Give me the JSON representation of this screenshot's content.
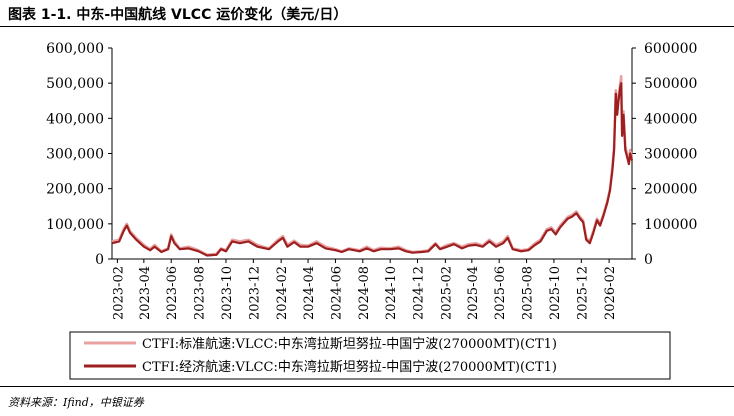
{
  "title": "图表 1-1. 中东-中国航线 VLCC 运价变化（美元/日）",
  "source": "资料来源：Ifind，中银证券",
  "chart_data": {
    "type": "line",
    "y_left": {
      "ticks": [
        "0",
        "100,000",
        "200,000",
        "300,000",
        "400,000",
        "500,000",
        "600,000"
      ],
      "range": [
        0,
        600000
      ]
    },
    "y_right": {
      "ticks": [
        "0",
        "100000",
        "200000",
        "300000",
        "400000",
        "500000",
        "600000"
      ],
      "range": [
        0,
        600000
      ]
    },
    "x_range": [
      "2023-01-20",
      "2026-03-24"
    ],
    "x_ticks": [
      "2023-02",
      "2023-04",
      "2023-06",
      "2023-08",
      "2023-10",
      "2023-12",
      "2024-02",
      "2024-04",
      "2024-06",
      "2024-08",
      "2024-10",
      "2024-12",
      "2025-02",
      "2025-04",
      "2025-06",
      "2025-08",
      "2025-10",
      "2025-12",
      "2026-02"
    ],
    "legend_position": "bottom",
    "grid": false,
    "series": [
      {
        "name": "CTFI:标准航速:VLCC:中东湾拉斯坦努拉-中国宁波(270000MT)(CT1)",
        "color": "#e8a0a0",
        "points": [
          [
            "2023-01-20",
            50000
          ],
          [
            "2023-02-05",
            55000
          ],
          [
            "2023-02-15",
            85000
          ],
          [
            "2023-02-22",
            100000
          ],
          [
            "2023-03-01",
            80000
          ],
          [
            "2023-03-15",
            60000
          ],
          [
            "2023-04-01",
            40000
          ],
          [
            "2023-04-15",
            28000
          ],
          [
            "2023-04-25",
            40000
          ],
          [
            "2023-05-10",
            22000
          ],
          [
            "2023-05-25",
            30000
          ],
          [
            "2023-06-01",
            70000
          ],
          [
            "2023-06-08",
            50000
          ],
          [
            "2023-06-20",
            30000
          ],
          [
            "2023-07-10",
            35000
          ],
          [
            "2023-08-01",
            25000
          ],
          [
            "2023-08-20",
            12000
          ],
          [
            "2023-09-10",
            15000
          ],
          [
            "2023-09-20",
            30000
          ],
          [
            "2023-10-01",
            25000
          ],
          [
            "2023-10-15",
            55000
          ],
          [
            "2023-11-01",
            50000
          ],
          [
            "2023-11-20",
            55000
          ],
          [
            "2023-12-10",
            40000
          ],
          [
            "2024-01-05",
            30000
          ],
          [
            "2024-01-25",
            55000
          ],
          [
            "2024-02-05",
            65000
          ],
          [
            "2024-02-15",
            40000
          ],
          [
            "2024-03-01",
            52000
          ],
          [
            "2024-03-15",
            40000
          ],
          [
            "2024-04-01",
            38000
          ],
          [
            "2024-04-20",
            50000
          ],
          [
            "2024-05-10",
            35000
          ],
          [
            "2024-06-01",
            28000
          ],
          [
            "2024-06-15",
            22000
          ],
          [
            "2024-07-01",
            30000
          ],
          [
            "2024-07-25",
            25000
          ],
          [
            "2024-08-10",
            35000
          ],
          [
            "2024-08-25",
            25000
          ],
          [
            "2024-09-10",
            32000
          ],
          [
            "2024-10-01",
            30000
          ],
          [
            "2024-10-20",
            35000
          ],
          [
            "2024-11-05",
            25000
          ],
          [
            "2024-11-20",
            20000
          ],
          [
            "2024-12-10",
            22000
          ],
          [
            "2024-12-25",
            25000
          ],
          [
            "2025-01-10",
            45000
          ],
          [
            "2025-01-20",
            30000
          ],
          [
            "2025-02-05",
            40000
          ],
          [
            "2025-02-20",
            45000
          ],
          [
            "2025-03-10",
            35000
          ],
          [
            "2025-03-25",
            42000
          ],
          [
            "2025-04-10",
            45000
          ],
          [
            "2025-04-25",
            38000
          ],
          [
            "2025-05-10",
            55000
          ],
          [
            "2025-05-25",
            40000
          ],
          [
            "2025-06-10",
            50000
          ],
          [
            "2025-06-20",
            65000
          ],
          [
            "2025-07-01",
            30000
          ],
          [
            "2025-07-20",
            25000
          ],
          [
            "2025-08-05",
            28000
          ],
          [
            "2025-08-20",
            45000
          ],
          [
            "2025-09-01",
            55000
          ],
          [
            "2025-09-15",
            85000
          ],
          [
            "2025-09-25",
            90000
          ],
          [
            "2025-10-05",
            75000
          ],
          [
            "2025-10-15",
            95000
          ],
          [
            "2025-10-25",
            110000
          ],
          [
            "2025-11-01",
            120000
          ],
          [
            "2025-11-10",
            125000
          ],
          [
            "2025-11-20",
            135000
          ],
          [
            "2025-11-28",
            120000
          ],
          [
            "2025-12-05",
            110000
          ],
          [
            "2025-12-12",
            60000
          ],
          [
            "2025-12-20",
            50000
          ],
          [
            "2025-12-28",
            80000
          ],
          [
            "2026-01-05",
            115000
          ],
          [
            "2026-01-12",
            100000
          ],
          [
            "2026-01-20",
            130000
          ],
          [
            "2026-01-28",
            165000
          ],
          [
            "2026-02-03",
            200000
          ],
          [
            "2026-02-08",
            260000
          ],
          [
            "2026-02-12",
            320000
          ],
          [
            "2026-02-16",
            480000
          ],
          [
            "2026-02-19",
            420000
          ],
          [
            "2026-02-22",
            460000
          ],
          [
            "2026-02-26",
            500000
          ],
          [
            "2026-02-28",
            520000
          ],
          [
            "2026-03-02",
            360000
          ],
          [
            "2026-03-05",
            420000
          ],
          [
            "2026-03-09",
            320000
          ],
          [
            "2026-03-13",
            300000
          ],
          [
            "2026-03-17",
            280000
          ],
          [
            "2026-03-20",
            310000
          ],
          [
            "2026-03-24",
            290000
          ]
        ]
      },
      {
        "name": "CTFI:经济航速:VLCC:中东湾拉斯坦努拉-中国宁波(270000MT)(CT1)",
        "color": "#9e1f1f",
        "points": [
          [
            "2023-01-20",
            45000
          ],
          [
            "2023-02-05",
            50000
          ],
          [
            "2023-02-15",
            80000
          ],
          [
            "2023-02-22",
            95000
          ],
          [
            "2023-03-01",
            75000
          ],
          [
            "2023-03-15",
            55000
          ],
          [
            "2023-04-01",
            35000
          ],
          [
            "2023-04-15",
            25000
          ],
          [
            "2023-04-25",
            35000
          ],
          [
            "2023-05-10",
            20000
          ],
          [
            "2023-05-25",
            28000
          ],
          [
            "2023-06-01",
            65000
          ],
          [
            "2023-06-08",
            45000
          ],
          [
            "2023-06-20",
            28000
          ],
          [
            "2023-07-10",
            30000
          ],
          [
            "2023-08-01",
            22000
          ],
          [
            "2023-08-20",
            10000
          ],
          [
            "2023-09-10",
            12000
          ],
          [
            "2023-09-20",
            28000
          ],
          [
            "2023-10-01",
            22000
          ],
          [
            "2023-10-15",
            50000
          ],
          [
            "2023-11-01",
            45000
          ],
          [
            "2023-11-20",
            50000
          ],
          [
            "2023-12-10",
            35000
          ],
          [
            "2024-01-05",
            28000
          ],
          [
            "2024-01-25",
            50000
          ],
          [
            "2024-02-05",
            60000
          ],
          [
            "2024-02-15",
            35000
          ],
          [
            "2024-03-01",
            48000
          ],
          [
            "2024-03-15",
            35000
          ],
          [
            "2024-04-01",
            35000
          ],
          [
            "2024-04-20",
            45000
          ],
          [
            "2024-05-10",
            30000
          ],
          [
            "2024-06-01",
            25000
          ],
          [
            "2024-06-15",
            20000
          ],
          [
            "2024-07-01",
            28000
          ],
          [
            "2024-07-25",
            22000
          ],
          [
            "2024-08-10",
            30000
          ],
          [
            "2024-08-25",
            22000
          ],
          [
            "2024-09-10",
            28000
          ],
          [
            "2024-10-01",
            28000
          ],
          [
            "2024-10-20",
            30000
          ],
          [
            "2024-11-05",
            22000
          ],
          [
            "2024-11-20",
            18000
          ],
          [
            "2024-12-10",
            20000
          ],
          [
            "2024-12-25",
            22000
          ],
          [
            "2025-01-10",
            42000
          ],
          [
            "2025-01-20",
            28000
          ],
          [
            "2025-02-05",
            35000
          ],
          [
            "2025-02-20",
            42000
          ],
          [
            "2025-03-10",
            30000
          ],
          [
            "2025-03-25",
            38000
          ],
          [
            "2025-04-10",
            40000
          ],
          [
            "2025-04-25",
            35000
          ],
          [
            "2025-05-10",
            50000
          ],
          [
            "2025-05-25",
            35000
          ],
          [
            "2025-06-10",
            45000
          ],
          [
            "2025-06-20",
            60000
          ],
          [
            "2025-07-01",
            28000
          ],
          [
            "2025-07-20",
            22000
          ],
          [
            "2025-08-05",
            25000
          ],
          [
            "2025-08-20",
            40000
          ],
          [
            "2025-09-01",
            50000
          ],
          [
            "2025-09-15",
            80000
          ],
          [
            "2025-09-25",
            85000
          ],
          [
            "2025-10-05",
            70000
          ],
          [
            "2025-10-15",
            90000
          ],
          [
            "2025-10-25",
            105000
          ],
          [
            "2025-11-01",
            115000
          ],
          [
            "2025-11-10",
            120000
          ],
          [
            "2025-11-20",
            130000
          ],
          [
            "2025-11-28",
            115000
          ],
          [
            "2025-12-05",
            105000
          ],
          [
            "2025-12-12",
            55000
          ],
          [
            "2025-12-20",
            45000
          ],
          [
            "2025-12-28",
            75000
          ],
          [
            "2026-01-05",
            110000
          ],
          [
            "2026-01-12",
            95000
          ],
          [
            "2026-01-20",
            125000
          ],
          [
            "2026-01-28",
            160000
          ],
          [
            "2026-02-03",
            195000
          ],
          [
            "2026-02-08",
            250000
          ],
          [
            "2026-02-12",
            310000
          ],
          [
            "2026-02-16",
            470000
          ],
          [
            "2026-02-19",
            410000
          ],
          [
            "2026-02-22",
            450000
          ],
          [
            "2026-02-26",
            490000
          ],
          [
            "2026-02-28",
            500000
          ],
          [
            "2026-03-02",
            350000
          ],
          [
            "2026-03-05",
            410000
          ],
          [
            "2026-03-09",
            310000
          ],
          [
            "2026-03-13",
            290000
          ],
          [
            "2026-03-17",
            270000
          ],
          [
            "2026-03-20",
            300000
          ],
          [
            "2026-03-24",
            280000
          ]
        ]
      }
    ]
  }
}
